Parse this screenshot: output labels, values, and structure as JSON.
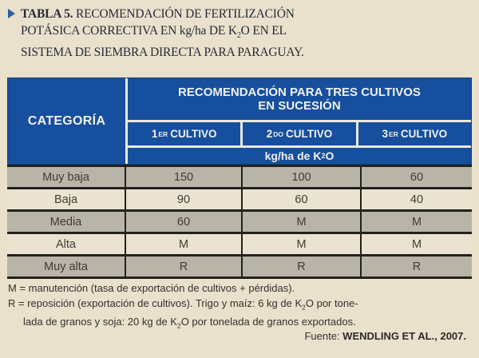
{
  "title": {
    "tag": "TABLA 5.",
    "rest_line1": "RECOMENDACIÓN DE FERTILIZACIÓN",
    "line2_a": "POTÁSICA CORRECTIVA EN kg/ha DE K",
    "line2_sub": "2",
    "line2_b": "O EN EL",
    "line3": "SISTEMA DE SIEMBRA DIRECTA PARA PARAGUAY."
  },
  "table": {
    "category_header": "CATEGORÍA",
    "group_header": "RECOMENDACIÓN PARA TRES CULTIVOS EN SUCESIÓN",
    "columns": [
      {
        "num": "1",
        "sup": "ER",
        "label": "CULTIVO"
      },
      {
        "num": "2",
        "sup": "DO",
        "label": "CULTIVO"
      },
      {
        "num": "3",
        "sup": "ER",
        "label": "CULTIVO"
      }
    ],
    "unit_a": "kg/ha de K",
    "unit_sub": "2",
    "unit_b": "O",
    "rows": [
      {
        "category": "Muy baja",
        "c1": "150",
        "c2": "100",
        "c3": "60"
      },
      {
        "category": "Baja",
        "c1": "90",
        "c2": "60",
        "c3": "40"
      },
      {
        "category": "Media",
        "c1": "60",
        "c2": "M",
        "c3": "M"
      },
      {
        "category": "Alta",
        "c1": "M",
        "c2": "M",
        "c3": "M"
      },
      {
        "category": "Muy alta",
        "c1": "R",
        "c2": "R",
        "c3": "R"
      }
    ]
  },
  "footnotes": {
    "m_line": "M = manutención (tasa de exportación de cultivos + pérdidas).",
    "r_line1_a": "R = reposición (exportación de cultivos). Trigo y maíz: 6 kg de K",
    "r_sub1": "2",
    "r_line1_b": "O por tone-",
    "r_line2_a": "lada de granos y soja: 20 kg de K",
    "r_sub2": "2",
    "r_line2_b": "O por tonelada de granos exportados.",
    "source_label": "Fuente:",
    "source_value": "WENDLING ET AL., 2007."
  },
  "colors": {
    "header_blue": "#164f9e",
    "row_gray": "#b9b4a8",
    "row_light": "#eae3d1",
    "page_bg": "#e9e1cc",
    "rule_black": "#23211c",
    "bullet_blue": "#2d5fa6"
  }
}
